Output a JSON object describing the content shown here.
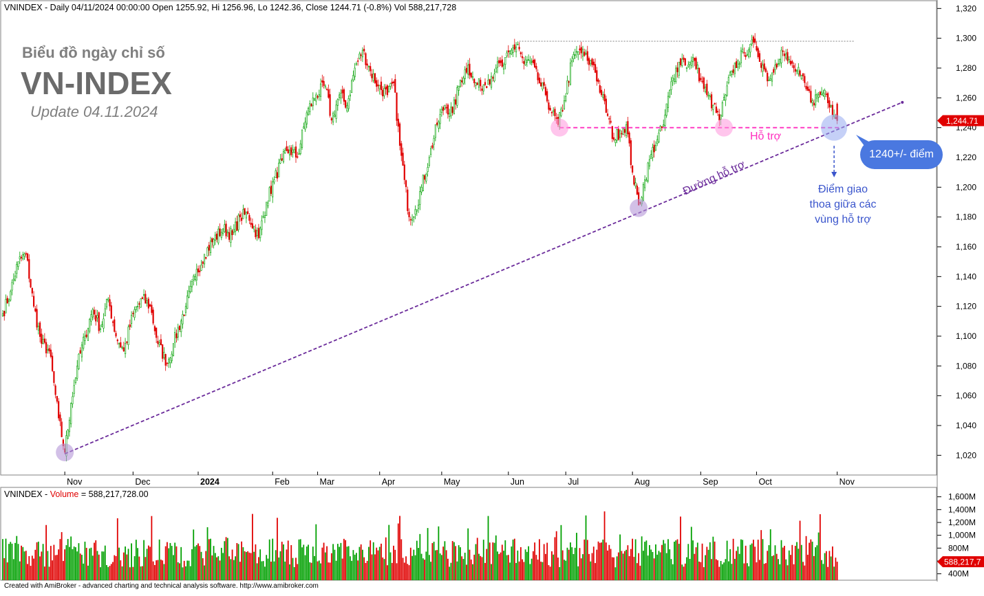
{
  "header": {
    "ohlc_line": "VNINDEX - Daily 04/11/2024 00:00:00 Open 1255.92, Hi 1256.96, Lo 1242.36, Close 1244.71 (-0.8%) Vol 588,217,728",
    "volume_label_prefix": "VNINDEX - ",
    "volume_label_name": "Volume",
    "volume_label_value": " = 588,217,728.00"
  },
  "watermark": {
    "line1": "Biểu đồ ngày chỉ số",
    "line2": "VN-INDEX",
    "line3": "Update 04.11.2024"
  },
  "annotations": {
    "support_label": "Hỗ trợ",
    "trendline_label": "Đường hỗ trợ",
    "target_pill": "1240+/- điểm",
    "confluence_line1": "Điểm giao",
    "confluence_line2": "thoa giữa các",
    "confluence_line3": "vùng hỗ trợ",
    "last_price_tag": "1,244.71",
    "last_volume_tag": "588,217,7"
  },
  "footer": "Created with AmiBroker - advanced charting and technical analysis software. http://www.amibroker.com",
  "colors": {
    "up": "#00a000",
    "down": "#e00000",
    "trendline": "#6a2a9a",
    "support": "#ff2fbf",
    "pill": "#4a78e0",
    "confluence_text": "#3a55cc"
  },
  "chart_data": {
    "type": "candlestick",
    "ylim": [
      1010,
      1322
    ],
    "price_ticks": [
      1020,
      1040,
      1060,
      1080,
      1100,
      1120,
      1140,
      1160,
      1180,
      1200,
      1220,
      1240,
      1260,
      1280,
      1300,
      1320
    ],
    "price_tick_labels": [
      "1,020",
      "1,040",
      "1,060",
      "1,080",
      "1,100",
      "1,120",
      "1,140",
      "1,160",
      "1,180",
      "1,200",
      "1,220",
      "1,240",
      "1,260",
      "1,280",
      "1,300",
      "1,320"
    ],
    "volume_ticks": [
      400,
      600,
      800,
      1000,
      1200,
      1400,
      1600
    ],
    "volume_tick_labels": [
      "400M",
      "600M",
      "800M",
      "1,000M",
      "1,200M",
      "1,400M",
      "1,600M"
    ],
    "volume_ylim": [
      300,
      1650
    ],
    "month_labels": [
      {
        "label": "Nov",
        "index": 40,
        "bold": false
      },
      {
        "label": "Dec",
        "index": 84,
        "bold": false
      },
      {
        "label": "2024",
        "index": 126,
        "bold": true
      },
      {
        "label": "Feb",
        "index": 174,
        "bold": false
      },
      {
        "label": "Mar",
        "index": 203,
        "bold": false
      },
      {
        "label": "Apr",
        "index": 243,
        "bold": false
      },
      {
        "label": "May",
        "index": 283,
        "bold": false
      },
      {
        "label": "Jun",
        "index": 326,
        "bold": false
      },
      {
        "label": "Jul",
        "index": 363,
        "bold": false
      },
      {
        "label": "Aug",
        "index": 406,
        "bold": false
      },
      {
        "label": "Sep",
        "index": 450,
        "bold": false
      },
      {
        "label": "Oct",
        "index": 486,
        "bold": false
      },
      {
        "label": "Nov",
        "index": 538,
        "bold": false
      }
    ],
    "close_anchors": [
      [
        0,
        1115
      ],
      [
        5,
        1130
      ],
      [
        10,
        1150
      ],
      [
        15,
        1155
      ],
      [
        20,
        1120
      ],
      [
        25,
        1095
      ],
      [
        30,
        1090
      ],
      [
        36,
        1045
      ],
      [
        40,
        1022
      ],
      [
        44,
        1055
      ],
      [
        48,
        1080
      ],
      [
        53,
        1100
      ],
      [
        58,
        1118
      ],
      [
        63,
        1105
      ],
      [
        68,
        1125
      ],
      [
        73,
        1100
      ],
      [
        78,
        1090
      ],
      [
        84,
        1115
      ],
      [
        90,
        1125
      ],
      [
        95,
        1120
      ],
      [
        100,
        1095
      ],
      [
        106,
        1082
      ],
      [
        110,
        1095
      ],
      [
        118,
        1120
      ],
      [
        124,
        1140
      ],
      [
        130,
        1155
      ],
      [
        136,
        1165
      ],
      [
        142,
        1172
      ],
      [
        148,
        1168
      ],
      [
        153,
        1180
      ],
      [
        158,
        1182
      ],
      [
        165,
        1166
      ],
      [
        170,
        1190
      ],
      [
        175,
        1205
      ],
      [
        180,
        1218
      ],
      [
        185,
        1225
      ],
      [
        190,
        1220
      ],
      [
        196,
        1250
      ],
      [
        202,
        1262
      ],
      [
        208,
        1268
      ],
      [
        212,
        1245
      ],
      [
        217,
        1262
      ],
      [
        222,
        1255
      ],
      [
        227,
        1280
      ],
      [
        232,
        1292
      ],
      [
        237,
        1278
      ],
      [
        242,
        1268
      ],
      [
        248,
        1262
      ],
      [
        252,
        1270
      ],
      [
        256,
        1228
      ],
      [
        259,
        1205
      ],
      [
        262,
        1180
      ],
      [
        266,
        1185
      ],
      [
        270,
        1200
      ],
      [
        275,
        1220
      ],
      [
        280,
        1242
      ],
      [
        285,
        1255
      ],
      [
        290,
        1250
      ],
      [
        295,
        1272
      ],
      [
        300,
        1282
      ],
      [
        304,
        1270
      ],
      [
        308,
        1268
      ],
      [
        313,
        1272
      ],
      [
        318,
        1280
      ],
      [
        323,
        1282
      ],
      [
        328,
        1292
      ],
      [
        332,
        1296
      ],
      [
        336,
        1283
      ],
      [
        340,
        1285
      ],
      [
        346,
        1270
      ],
      [
        350,
        1262
      ],
      [
        354,
        1250
      ],
      [
        358,
        1242
      ],
      [
        362,
        1258
      ],
      [
        367,
        1285
      ],
      [
        372,
        1292
      ],
      [
        377,
        1285
      ],
      [
        381,
        1282
      ],
      [
        386,
        1262
      ],
      [
        390,
        1248
      ],
      [
        394,
        1232
      ],
      [
        398,
        1238
      ],
      [
        402,
        1242
      ],
      [
        406,
        1210
      ],
      [
        410,
        1188
      ],
      [
        414,
        1205
      ],
      [
        418,
        1222
      ],
      [
        422,
        1232
      ],
      [
        426,
        1242
      ],
      [
        430,
        1265
      ],
      [
        434,
        1280
      ],
      [
        438,
        1286
      ],
      [
        442,
        1282
      ],
      [
        446,
        1285
      ],
      [
        450,
        1272
      ],
      [
        454,
        1262
      ],
      [
        458,
        1255
      ],
      [
        462,
        1245
      ],
      [
        466,
        1262
      ],
      [
        470,
        1278
      ],
      [
        474,
        1285
      ],
      [
        478,
        1290
      ],
      [
        482,
        1296
      ],
      [
        486,
        1292
      ],
      [
        490,
        1282
      ],
      [
        494,
        1272
      ],
      [
        498,
        1282
      ],
      [
        502,
        1292
      ],
      [
        506,
        1285
      ],
      [
        510,
        1280
      ],
      [
        514,
        1275
      ],
      [
        518,
        1266
      ],
      [
        522,
        1258
      ],
      [
        526,
        1262
      ],
      [
        530,
        1265
      ],
      [
        534,
        1255
      ],
      [
        538,
        1244.71
      ]
    ],
    "last_bar": {
      "open": 1255.92,
      "high": 1256.96,
      "low": 1242.36,
      "close": 1244.71,
      "volume": 588217728
    },
    "support_level": 1240,
    "trendline": {
      "from": [
        40,
        1021
      ],
      "to": [
        580,
        1257
      ]
    },
    "resistance_level": 1298,
    "resistance_span": [
      333,
      549
    ],
    "highlight_points": [
      {
        "index": 359,
        "price": 1240,
        "kind": "support"
      },
      {
        "index": 465,
        "price": 1240,
        "kind": "support"
      },
      {
        "index": 410,
        "price": 1186,
        "kind": "trendline"
      },
      {
        "index": 40,
        "price": 1022,
        "kind": "trendline"
      },
      {
        "index": 536,
        "price": 1240,
        "kind": "confluence"
      }
    ]
  }
}
